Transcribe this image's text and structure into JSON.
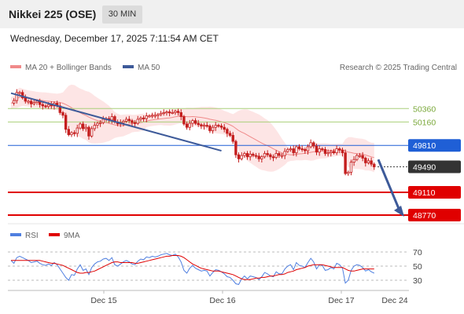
{
  "header": {
    "title": "Nikkei 225 (OSE)",
    "timeframe": "30 MIN"
  },
  "datetime": "Wednesday, December 17, 2025 7:11:54 AM CET",
  "legend": {
    "ma_bb": "MA 20 + Bollinger Bands",
    "ma50": "MA 50",
    "credit": "Research © 2025 Trading Central"
  },
  "rsi_legend": {
    "rsi": "RSI",
    "ma9": "9MA"
  },
  "colors": {
    "bb_fill": "#fbd4d4",
    "ma20": "#f08a8a",
    "ma50": "#3d5a99",
    "candle": "#c41e1e",
    "trend": "#3d5a99",
    "resistance_green": "#a9cf7a",
    "support_red": "#e00000",
    "pivot_blue": "#1f5fd6",
    "current": "#333333",
    "rsi": "#4f7fe0",
    "rsi_ma": "#e00000"
  },
  "chart_data": {
    "type": "candlestick",
    "x_ticks": [
      "Dec 15",
      "Dec 16",
      "Dec 17",
      "Dec 24"
    ],
    "y_range": [
      48700,
      50750
    ],
    "levels": [
      {
        "value": 50360,
        "label": "50360",
        "kind": "resistance"
      },
      {
        "value": 50160,
        "label": "50160",
        "kind": "resistance"
      },
      {
        "value": 49810,
        "label": "49810",
        "kind": "pivot"
      },
      {
        "value": 49490,
        "label": "49490",
        "kind": "current"
      },
      {
        "value": 49110,
        "label": "49110",
        "kind": "support"
      },
      {
        "value": 48770,
        "label": "48770",
        "kind": "support"
      }
    ],
    "close_series": [
      50440,
      50480,
      50600,
      50600,
      50520,
      50470,
      50470,
      50430,
      50450,
      50470,
      50420,
      50400,
      50390,
      50420,
      50400,
      50440,
      50400,
      50300,
      50260,
      50050,
      49970,
      50000,
      49990,
      50070,
      50130,
      50060,
      50080,
      49950,
      50060,
      50110,
      50140,
      50150,
      50200,
      50210,
      50190,
      50240,
      50160,
      50130,
      50150,
      50170,
      50200,
      50180,
      50150,
      50140,
      50200,
      50220,
      50210,
      50250,
      50250,
      50260,
      50260,
      50270,
      50290,
      50300,
      50310,
      50300,
      50300,
      50320,
      50300,
      50240,
      50130,
      50080,
      50140,
      50180,
      50140,
      50120,
      50100,
      50110,
      50100,
      50030,
      50080,
      50110,
      50100,
      50080,
      50050,
      49990,
      49960,
      49870,
      49670,
      49610,
      49660,
      49690,
      49640,
      49680,
      49660,
      49650,
      49610,
      49640,
      49690,
      49670,
      49640,
      49630,
      49690,
      49660,
      49660,
      49720,
      49750,
      49760,
      49700,
      49790,
      49760,
      49750,
      49730,
      49790,
      49850,
      49800,
      49710,
      49760,
      49750,
      49690,
      49700,
      49720,
      49700,
      49760,
      49740,
      49700,
      49390,
      49410,
      49560,
      49600,
      49660,
      49660,
      49620,
      49550,
      49580,
      49530,
      49490
    ],
    "ma50_line": [
      [
        0,
        50590
      ],
      [
        73,
        49730
      ]
    ],
    "forecast_arrow": [
      [
        69,
        49600
      ],
      [
        78,
        48770
      ]
    ],
    "rsi": {
      "levels": [
        70,
        50,
        30
      ],
      "values": [
        58,
        54,
        62,
        64,
        62,
        60,
        58,
        55,
        56,
        57,
        54,
        52,
        51,
        53,
        51,
        55,
        52,
        46,
        40,
        34,
        30,
        38,
        37,
        46,
        52,
        44,
        46,
        38,
        48,
        53,
        56,
        57,
        60,
        61,
        58,
        62,
        52,
        50,
        53,
        56,
        58,
        56,
        53,
        52,
        57,
        60,
        59,
        63,
        62,
        64,
        63,
        64,
        66,
        67,
        68,
        66,
        65,
        67,
        63,
        56,
        44,
        40,
        47,
        51,
        47,
        45,
        43,
        44,
        43,
        36,
        41,
        45,
        44,
        42,
        39,
        35,
        34,
        30,
        25,
        24,
        32,
        36,
        32,
        36,
        35,
        34,
        31,
        35,
        41,
        39,
        36,
        35,
        42,
        39,
        39,
        46,
        50,
        52,
        45,
        55,
        51,
        50,
        48,
        55,
        61,
        56,
        46,
        52,
        51,
        44,
        45,
        48,
        46,
        54,
        52,
        47,
        26,
        30,
        44,
        50,
        52,
        51,
        48,
        43,
        45,
        42,
        40
      ],
      "ma9_values": [
        58,
        58,
        58,
        58,
        58,
        58,
        58,
        58,
        58,
        58,
        58,
        57,
        56,
        55,
        54,
        54,
        53,
        52,
        51,
        49,
        47,
        45,
        43,
        41,
        40,
        40,
        41,
        41,
        42,
        43,
        45,
        47,
        49,
        51,
        53,
        55,
        56,
        56,
        55,
        55,
        55,
        55,
        55,
        54,
        54,
        55,
        56,
        57,
        58,
        59,
        60,
        61,
        62,
        63,
        64,
        64,
        65,
        65,
        65,
        64,
        62,
        59,
        56,
        53,
        51,
        49,
        47,
        46,
        45,
        44,
        43,
        43,
        43,
        42,
        41,
        40,
        39,
        38,
        36,
        34,
        32,
        31,
        31,
        31,
        32,
        33,
        33,
        34,
        34,
        35,
        36,
        36,
        37,
        38,
        38,
        39,
        41,
        42,
        43,
        45,
        46,
        47,
        48,
        50,
        51,
        52,
        52,
        52,
        52,
        51,
        50,
        49,
        48,
        48,
        48,
        48,
        46,
        44,
        43,
        43,
        44,
        45,
        46,
        46,
        46,
        46,
        46
      ]
    }
  }
}
